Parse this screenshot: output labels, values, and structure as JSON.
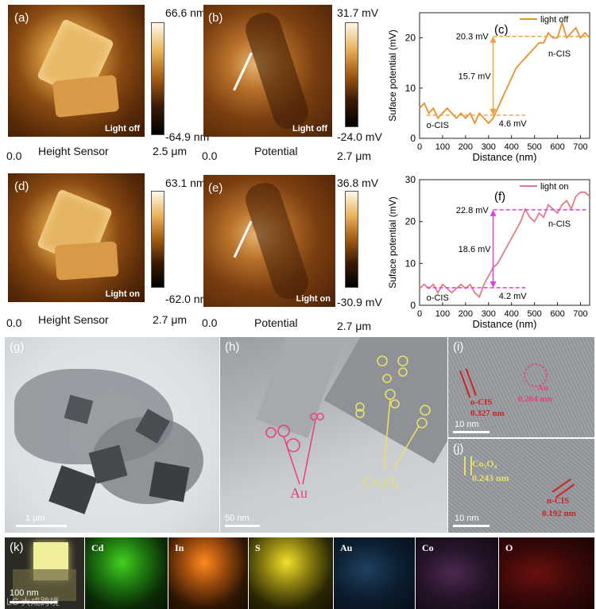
{
  "panels": {
    "a": {
      "label": "(a)",
      "tag": "Light off",
      "cbar_max": "66.6 nm",
      "cbar_min": "-64.9 nm",
      "axis_start": "0.0",
      "axis_title": "Height Sensor",
      "axis_end": "2.5 μm"
    },
    "b": {
      "label": "(b)",
      "tag": "Light off",
      "cbar_max": "31.7 mV",
      "cbar_min": "-24.0 mV",
      "axis_start": "0.0",
      "axis_title": "Potential",
      "axis_end": "2.7 μm"
    },
    "d": {
      "label": "(d)",
      "tag": "Light on",
      "cbar_max": "63.1 nm",
      "cbar_min": "-62.0 nm",
      "axis_start": "0.0",
      "axis_title": "Height Sensor",
      "axis_end": "2.7 μm"
    },
    "e": {
      "label": "(e)",
      "tag": "Light on",
      "cbar_max": "36.8 mV",
      "cbar_min": "-30.9 mV",
      "axis_start": "0.0",
      "axis_title": "Potential",
      "axis_end": "2.7 μm"
    },
    "g": {
      "label": "(g)",
      "scale": "1 μm"
    },
    "h": {
      "label": "(h)",
      "scale": "50 nm",
      "au": "Au",
      "co3o4": "Co₃O₄"
    },
    "i": {
      "label": "(i)",
      "scale": "10 nm",
      "ocis": "o-CIS",
      "ocis_d": "0.327 nm",
      "au": "Au",
      "au_d": "0.204 nm"
    },
    "j": {
      "label": "(j)",
      "scale": "10 nm",
      "co": "Co₃O₄",
      "co_d": "0.243 nm",
      "ncis": "n-CIS",
      "ncis_d": "0.192 nm"
    },
    "k": {
      "label": "(k)",
      "scale": "100 nm",
      "watermark": "LC 大成跨境",
      "elements": [
        "Cd",
        "In",
        "S",
        "Au",
        "Co",
        "O"
      ]
    }
  },
  "chart_data": [
    {
      "panel": "(c)",
      "type": "line",
      "legend": "light off",
      "legend_position": "top-right",
      "xlabel": "Distance (nm)",
      "ylabel": "Suface potential (mV)",
      "xlim": [
        0,
        740
      ],
      "ylim": [
        0,
        25
      ],
      "xticks": [
        0,
        100,
        200,
        300,
        400,
        500,
        600,
        700
      ],
      "yticks": [
        0,
        10,
        20
      ],
      "color": "#e8902c",
      "series": [
        {
          "name": "light off",
          "x": [
            0,
            20,
            40,
            60,
            80,
            100,
            120,
            140,
            160,
            180,
            200,
            220,
            240,
            260,
            280,
            300,
            320,
            340,
            360,
            380,
            400,
            420,
            440,
            460,
            480,
            500,
            520,
            540,
            560,
            580,
            600,
            620,
            640,
            660,
            680,
            700,
            720,
            740
          ],
          "values": [
            6,
            7,
            5,
            6,
            4,
            5,
            6,
            5,
            4,
            5,
            4,
            5,
            3,
            5,
            4,
            3,
            4,
            6,
            8,
            10,
            12,
            14,
            15,
            16,
            17,
            18,
            19,
            19,
            21,
            20,
            20,
            23,
            20,
            21,
            22,
            20,
            21,
            20
          ]
        }
      ],
      "annotations": {
        "top_level": "20.3 mV",
        "delta": "15.7 mV",
        "bottom_level": "4.6 mV",
        "left_region": "o-CIS",
        "right_region": "n-CIS",
        "top_value": 20.3,
        "bottom_value": 4.6,
        "line_color": "#f0a040"
      }
    },
    {
      "panel": "(f)",
      "type": "line",
      "legend": "light on",
      "legend_position": "top-right",
      "xlabel": "Distance (nm)",
      "ylabel": "Suface potential (mV)",
      "xlim": [
        0,
        740
      ],
      "ylim": [
        0,
        30
      ],
      "xticks": [
        0,
        100,
        200,
        300,
        400,
        500,
        600,
        700
      ],
      "yticks": [
        0,
        10,
        20,
        30
      ],
      "color": "#e57a8a",
      "series": [
        {
          "name": "light on",
          "x": [
            0,
            20,
            40,
            60,
            80,
            100,
            120,
            140,
            160,
            180,
            200,
            220,
            240,
            260,
            280,
            300,
            320,
            340,
            360,
            380,
            400,
            420,
            440,
            460,
            480,
            500,
            520,
            540,
            560,
            580,
            600,
            620,
            640,
            660,
            680,
            700,
            720,
            740
          ],
          "values": [
            4,
            5,
            4,
            5,
            3,
            5,
            4,
            3,
            4,
            5,
            4,
            5,
            3,
            2,
            5,
            7,
            9,
            10,
            12,
            14,
            16,
            18,
            20,
            23,
            21,
            20,
            22,
            21,
            24,
            23,
            22,
            24,
            25,
            23,
            26,
            27,
            27,
            26
          ]
        }
      ],
      "annotations": {
        "top_level": "22.8 mV",
        "delta": "18.6 mV",
        "bottom_level": "4.2 mV",
        "left_region": "o-CIS",
        "right_region": "n-CIS",
        "top_value": 22.8,
        "bottom_value": 4.2,
        "line_color": "#e040e0"
      }
    }
  ]
}
